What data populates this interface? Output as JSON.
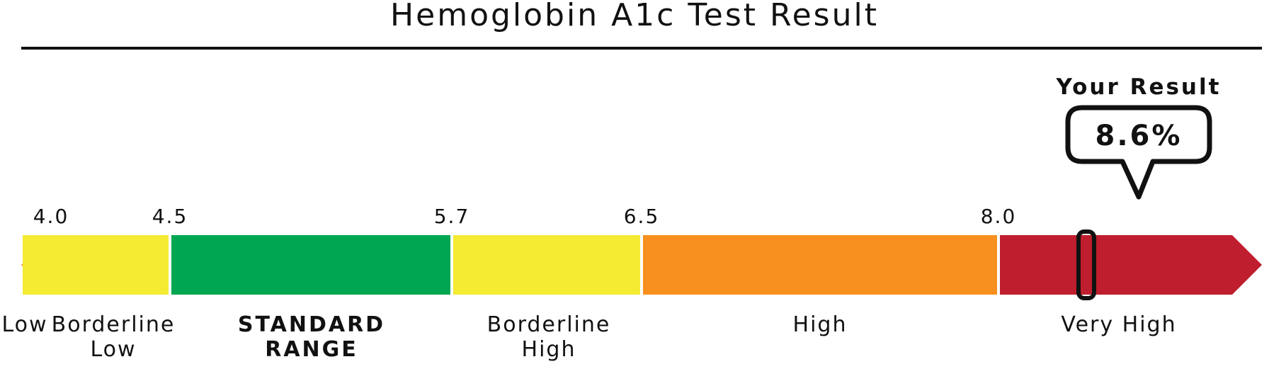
{
  "chart_data": {
    "type": "bar",
    "title": "Hemoglobin A1c Test Result",
    "xlim": [
      3.6,
      9.8
    ],
    "ticks": [
      "4.0",
      "4.5",
      "5.7",
      "6.5",
      "8.0"
    ],
    "segments": [
      {
        "label": "Low",
        "lines": [
          "Low"
        ],
        "from": 3.6,
        "to": 4.0,
        "color": "#f7901e",
        "bold": false,
        "shape": "left-arrow"
      },
      {
        "label": "Borderline Low",
        "lines": [
          "Borderline",
          "Low"
        ],
        "from": 4.0,
        "to": 4.5,
        "color": "#f4eb32",
        "bold": false,
        "shape": "rect"
      },
      {
        "label": "STANDARD RANGE",
        "lines": [
          "STANDARD",
          "RANGE"
        ],
        "from": 4.5,
        "to": 5.7,
        "color": "#00a651",
        "bold": true,
        "shape": "rect"
      },
      {
        "label": "Borderline High",
        "lines": [
          "Borderline",
          "High"
        ],
        "from": 5.7,
        "to": 6.5,
        "color": "#f4eb32",
        "bold": false,
        "shape": "rect"
      },
      {
        "label": "High",
        "lines": [
          "High"
        ],
        "from": 6.5,
        "to": 8.0,
        "color": "#f7901e",
        "bold": false,
        "shape": "rect"
      },
      {
        "label": "Very High",
        "lines": [
          "Very High"
        ],
        "from": 8.0,
        "to": 9.8,
        "color": "#be1e2d",
        "bold": false,
        "shape": "right-arrow"
      }
    ],
    "result": {
      "label": "Your Result",
      "value": 8.6,
      "display": "8.6%"
    }
  }
}
